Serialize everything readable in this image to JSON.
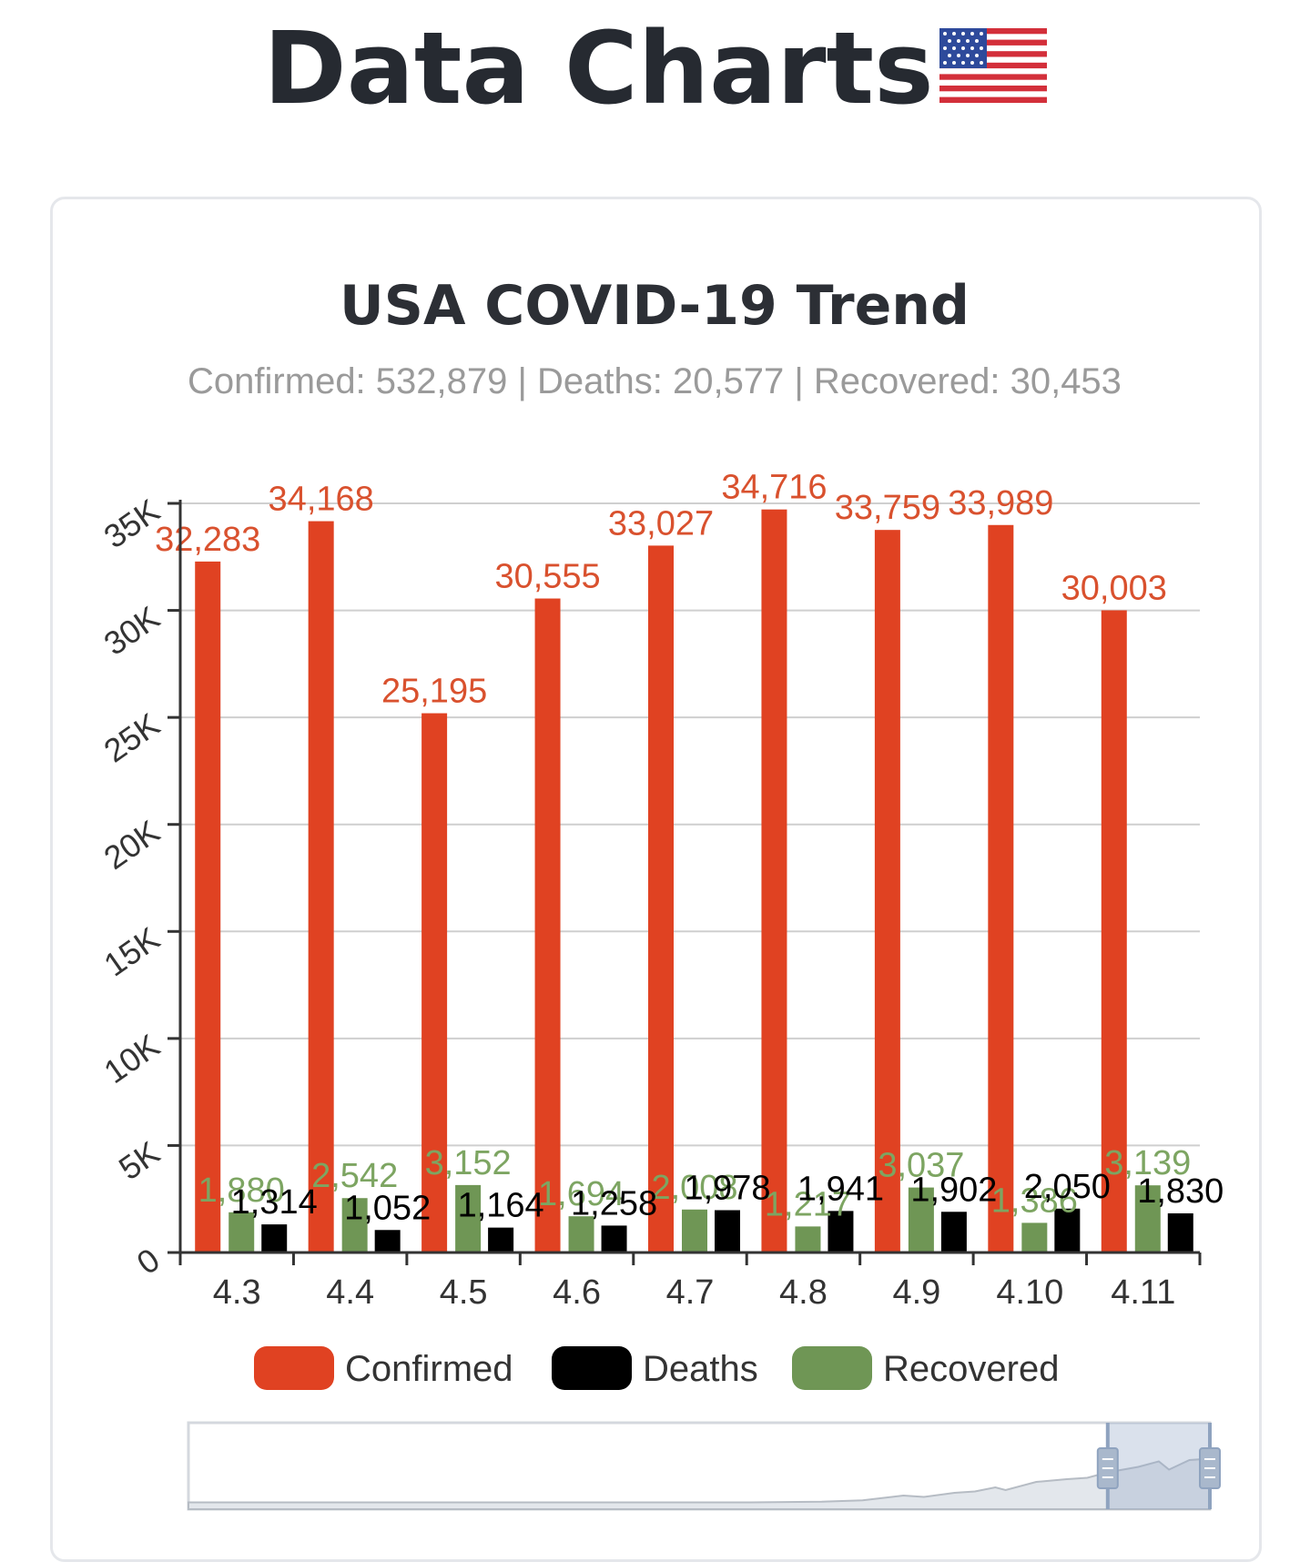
{
  "page": {
    "title": "Data Charts",
    "flag_icon": "us-flag-icon"
  },
  "chart_data": {
    "type": "bar",
    "title": "USA COVID-19 Trend",
    "subtitle": "Confirmed: 532,879 | Deaths: 20,577 | Recovered: 30,453",
    "categories": [
      "4.3",
      "4.4",
      "4.5",
      "4.6",
      "4.7",
      "4.8",
      "4.9",
      "4.10",
      "4.11"
    ],
    "series": [
      {
        "name": "Confirmed",
        "color": "#e04222",
        "label_color": "#d9512e",
        "values": [
          32283,
          34168,
          25195,
          30555,
          33027,
          34716,
          33759,
          33989,
          30003
        ]
      },
      {
        "name": "Recovered",
        "color": "#6f9655",
        "label_color": "#7da562",
        "values": [
          1880,
          2542,
          3152,
          1694,
          2008,
          1217,
          3037,
          1386,
          3139
        ]
      },
      {
        "name": "Deaths",
        "color": "#000000",
        "label_color": "#000000",
        "values": [
          1314,
          1052,
          1164,
          1258,
          1978,
          1941,
          1902,
          2050,
          1830
        ]
      }
    ],
    "legend_order": [
      "Confirmed",
      "Deaths",
      "Recovered"
    ],
    "yticks": [
      "0",
      "5K",
      "10K",
      "15K",
      "20K",
      "25K",
      "30K",
      "35K"
    ],
    "ylim": [
      0,
      35000
    ],
    "grid": true,
    "legend_position": "bottom",
    "data_labels": true,
    "data_zoom": {
      "shown": true,
      "selected_range": [
        0.9,
        1.0
      ]
    }
  }
}
